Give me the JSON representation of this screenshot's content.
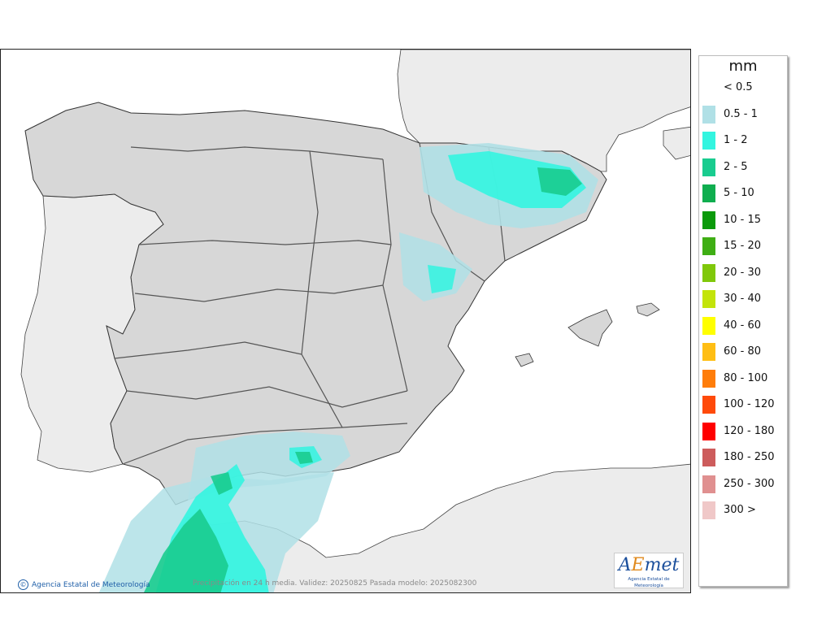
{
  "map": {
    "caption": "Precipitación en 24 h media. Validez: 20250825 Pasada modelo: 2025082300",
    "credit": "Agencia Estatal de Meteorología",
    "colors": {
      "sea": "#ffffff",
      "land": "#d7d7d7",
      "foreign": "#ececec"
    }
  },
  "logo": {
    "mark_a": "A",
    "mark_e": "E",
    "mark_rest": "met",
    "subtitle": "Agencia Estatal de Meteorología"
  },
  "legend": {
    "title": "mm",
    "entries": [
      {
        "label": "< 0.5",
        "color": "#ffffff"
      },
      {
        "label": "0.5 - 1",
        "color": "#b0e0e6"
      },
      {
        "label": "1 - 2",
        "color": "#33f5e0"
      },
      {
        "label": "2 - 5",
        "color": "#19cc8f"
      },
      {
        "label": "5 - 10",
        "color": "#0fae4f"
      },
      {
        "label": "10 - 15",
        "color": "#0b9a0b"
      },
      {
        "label": "15 - 20",
        "color": "#3fae14"
      },
      {
        "label": "20 - 30",
        "color": "#80c80a"
      },
      {
        "label": "30 - 40",
        "color": "#c3e40a"
      },
      {
        "label": "40 - 60",
        "color": "#ffff00"
      },
      {
        "label": "60 - 80",
        "color": "#ffbe14"
      },
      {
        "label": "80 - 100",
        "color": "#ff7d0a"
      },
      {
        "label": "100 - 120",
        "color": "#ff4a0a"
      },
      {
        "label": "120 - 180",
        "color": "#ff0000"
      },
      {
        "label": "180 - 250",
        "color": "#cd5c5c"
      },
      {
        "label": "250 - 300",
        "color": "#e09090"
      },
      {
        "label": "300 >",
        "color": "#f0c8c8"
      }
    ]
  }
}
